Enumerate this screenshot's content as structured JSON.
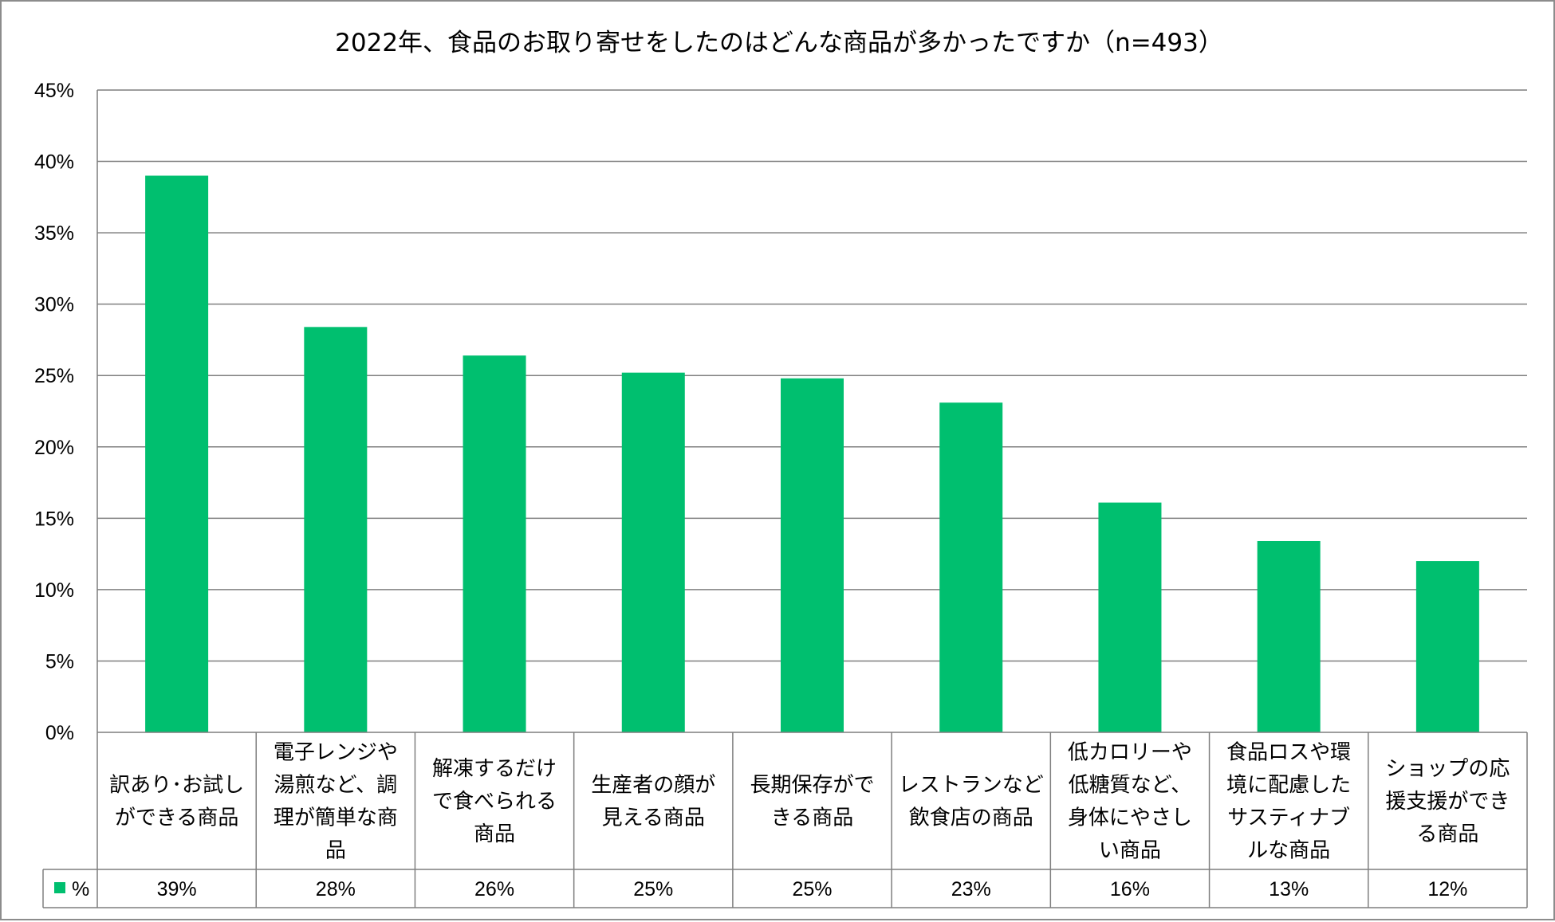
{
  "chart_data": {
    "type": "bar",
    "title": "2022年、食品のお取り寄せをしたのはどんな商品が多かったですか（n=493）",
    "categories": [
      [
        "訳あり･お試し",
        "ができる商品"
      ],
      [
        "電子レンジや",
        "湯煎など、調",
        "理が簡単な商",
        "品"
      ],
      [
        "解凍するだけ",
        "で食べられる",
        "商品"
      ],
      [
        "生産者の顔が",
        "見える商品"
      ],
      [
        "長期保存がで",
        "きる商品"
      ],
      [
        "レストランなど",
        "飲食店の商品"
      ],
      [
        "低カロリーや",
        "低糖質など、",
        "身体にやさし",
        "い商品"
      ],
      [
        "食品ロスや環",
        "境に配慮した",
        "サスティナブ",
        "ルな商品"
      ],
      [
        "ショップの応",
        "援支援ができ",
        "る商品"
      ]
    ],
    "series": [
      {
        "name": "%",
        "values": [
          39,
          28.4,
          26.4,
          25.2,
          24.8,
          23.1,
          16.1,
          13.4,
          12
        ],
        "labels": [
          "39%",
          "28%",
          "26%",
          "25%",
          "25%",
          "23%",
          "16%",
          "13%",
          "12%"
        ],
        "color": "#00bf6f"
      }
    ],
    "ylim": [
      0,
      45
    ],
    "yticks": [
      0,
      5,
      10,
      15,
      20,
      25,
      30,
      35,
      40,
      45
    ],
    "ytick_labels": [
      "0%",
      "5%",
      "10%",
      "15%",
      "20%",
      "25%",
      "30%",
      "35%",
      "40%",
      "45%"
    ],
    "xlabel": "",
    "ylabel": "",
    "grid": true,
    "legend": "data-table",
    "gridline_color": "#7f7f7f",
    "axis_color": "#7f7f7f"
  }
}
